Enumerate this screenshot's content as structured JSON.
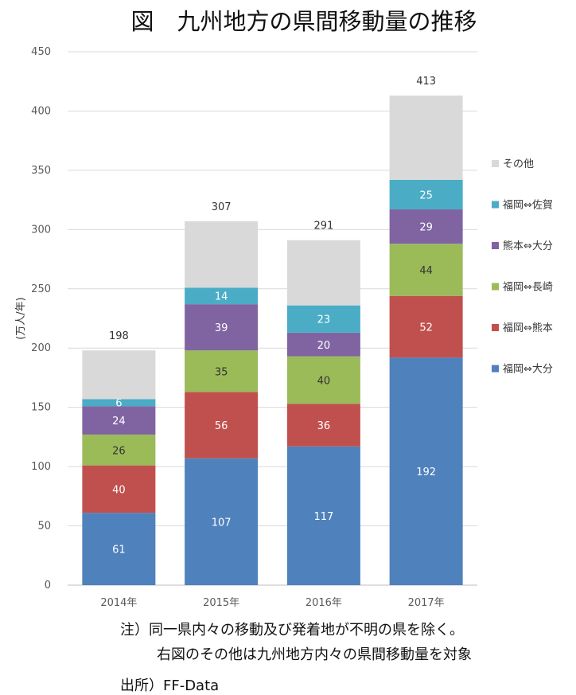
{
  "title": "図　九州地方の県間移動量の推移",
  "notes": {
    "line1": "注）同一県内々の移動及び発着地が不明の県を除く。",
    "line2": "右図のその他は九州地方内々の県間移動量を対象",
    "source": "出所）FF-Data"
  },
  "chart_data": {
    "type": "bar",
    "stacked": true,
    "title": "",
    "ylabel": "(万人/年)",
    "xlabel": "",
    "ylim": [
      0,
      450
    ],
    "yticks": [
      0,
      50,
      100,
      150,
      200,
      250,
      300,
      350,
      400,
      450
    ],
    "grid": true,
    "legend_position": "right",
    "categories": [
      "2014年",
      "2015年",
      "2016年",
      "2017年"
    ],
    "totals": [
      198,
      307,
      291,
      413
    ],
    "series": [
      {
        "name": "福岡⇔大分",
        "color": "#4f81bd",
        "label_color": "#ffffff",
        "values": [
          61,
          107,
          117,
          192
        ]
      },
      {
        "name": "福岡⇔熊本",
        "color": "#c0504d",
        "label_color": "#ffffff",
        "values": [
          40,
          56,
          36,
          52
        ]
      },
      {
        "name": "福岡⇔長崎",
        "color": "#9bbb59",
        "label_color": "#333333",
        "values": [
          26,
          35,
          40,
          44
        ]
      },
      {
        "name": "熊本⇔大分",
        "color": "#8064a2",
        "label_color": "#ffffff",
        "values": [
          24,
          39,
          20,
          29
        ]
      },
      {
        "name": "福岡⇔佐賀",
        "color": "#4bacc6",
        "label_color": "#ffffff",
        "values": [
          6,
          14,
          23,
          25
        ]
      },
      {
        "name": "その他",
        "color": "#d9d9d9",
        "label_color": "#333333",
        "values": [
          41,
          56,
          55,
          71
        ]
      }
    ]
  }
}
